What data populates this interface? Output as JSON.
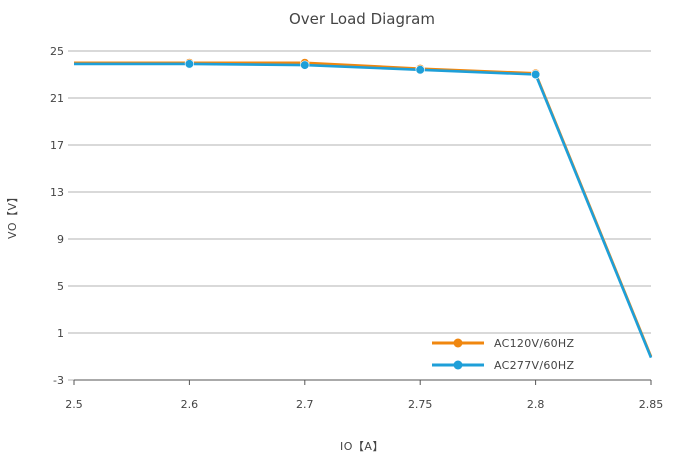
{
  "chart_data": {
    "type": "line",
    "title": "Over Load Diagram",
    "xlabel": "IO【A】",
    "ylabel": "VO【V】",
    "x_ticks": [
      "2.5",
      "2.6",
      "2.7",
      "2.75",
      "2.8",
      "2.85"
    ],
    "y_ticks": [
      "25",
      "21",
      "17",
      "13",
      "9",
      "5",
      "1",
      "-3"
    ],
    "ylim": [
      -3,
      25
    ],
    "grid": "horizontal",
    "legend_position": "bottom-right",
    "series": [
      {
        "name": "AC120V/60HZ",
        "color": "#F0870F",
        "marker_x": [
          2.6,
          2.7,
          2.75,
          2.8
        ],
        "x": [
          2.5,
          2.6,
          2.7,
          2.75,
          2.8,
          2.85
        ],
        "y": [
          24.0,
          24.0,
          24.0,
          23.5,
          23.1,
          -1.0
        ]
      },
      {
        "name": "AC277V/60HZ",
        "color": "#1E9FD8",
        "marker_x": [
          2.6,
          2.7,
          2.75,
          2.8
        ],
        "x": [
          2.5,
          2.6,
          2.7,
          2.75,
          2.8,
          2.85
        ],
        "y": [
          23.9,
          23.9,
          23.8,
          23.4,
          23.0,
          -1.1
        ]
      }
    ]
  }
}
